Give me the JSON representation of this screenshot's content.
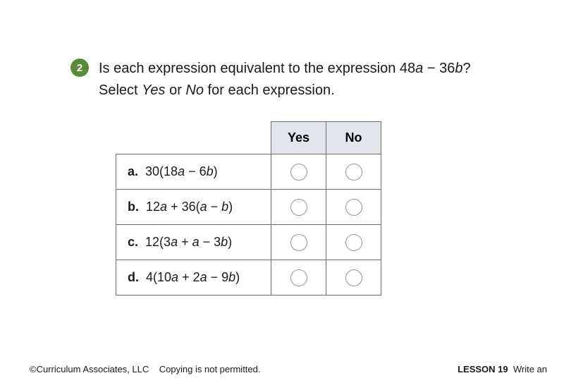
{
  "colors": {
    "badge_bg": "#5a8a3a",
    "badge_fg": "#ffffff",
    "text": "#1a1a1a",
    "border": "#6b6b6b",
    "header_bg": "#e0e6ec",
    "circle_border": "#949494",
    "page_bg": "#ffffff"
  },
  "question": {
    "number": "2",
    "line1_pre": "Is each expression equivalent to the expression 48",
    "var_a": "a",
    "minus": " − ",
    "coef_b": "36",
    "var_b": "b",
    "line1_post": "?",
    "line2_pre": "Select ",
    "yes_ital": "Yes",
    "or": " or ",
    "no_ital": "No",
    "line2_post": " for each expression."
  },
  "table": {
    "col_yes": "Yes",
    "col_no": "No",
    "rows": [
      {
        "label": "a.",
        "p1": "30(18",
        "v1": "a",
        "op1": " − ",
        "p2": "6",
        "v2": "b",
        "p3": ")"
      },
      {
        "label": "b.",
        "p1": "12",
        "v1": "a",
        "op1": " + ",
        "p2": "36(",
        "v2": "a",
        "op2": " − ",
        "v3": "b",
        "p3": ")"
      },
      {
        "label": "c.",
        "p1": "12(3",
        "v1": "a",
        "op1": " + ",
        "v2": "a",
        "op2": " − ",
        "p2": "3",
        "v3": "b",
        "p3": ")"
      },
      {
        "label": "d.",
        "p1": "4(10",
        "v1": "a",
        "op1": " + ",
        "p2": "2",
        "v2": "a",
        "op2": " − ",
        "p3": "9",
        "v3": "b",
        "p4": ")"
      }
    ]
  },
  "footer": {
    "left": "©Curriculum Associates, LLC    Copying is not permitted.",
    "lesson_label": "LESSON 19",
    "lesson_rest": "  Write an"
  }
}
